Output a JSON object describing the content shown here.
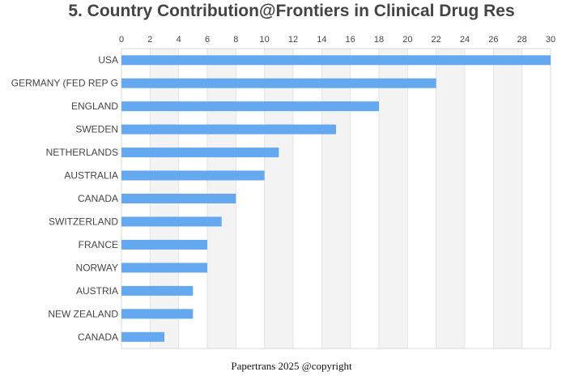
{
  "colors": {
    "bar": "#64a8f0",
    "band": "#f3f3f3",
    "grid": "#e3e3e3",
    "label": "#444444"
  },
  "footer": "Papertrans 2025 @copyright",
  "chart_data": {
    "type": "bar",
    "orientation": "horizontal",
    "title": "5. Country Contribution@Frontiers in Clinical Drug Res",
    "categories": [
      "USA",
      "GERMANY (FED REP G",
      "ENGLAND",
      "SWEDEN",
      "NETHERLANDS",
      "AUSTRALIA",
      "CANADA",
      "SWITZERLAND",
      "FRANCE",
      "NORWAY",
      "AUSTRIA",
      "NEW ZEALAND",
      "CANADA"
    ],
    "values": [
      30,
      22,
      18,
      15,
      11,
      10,
      8,
      7,
      6,
      6,
      5,
      5,
      3
    ],
    "xlim": [
      0,
      30
    ],
    "x_ticks": [
      0,
      2,
      4,
      6,
      8,
      10,
      12,
      14,
      16,
      18,
      20,
      22,
      24,
      26,
      28,
      30
    ],
    "x_axis_position": "top",
    "grid": true,
    "alternating_bands": true,
    "legend": "none"
  }
}
